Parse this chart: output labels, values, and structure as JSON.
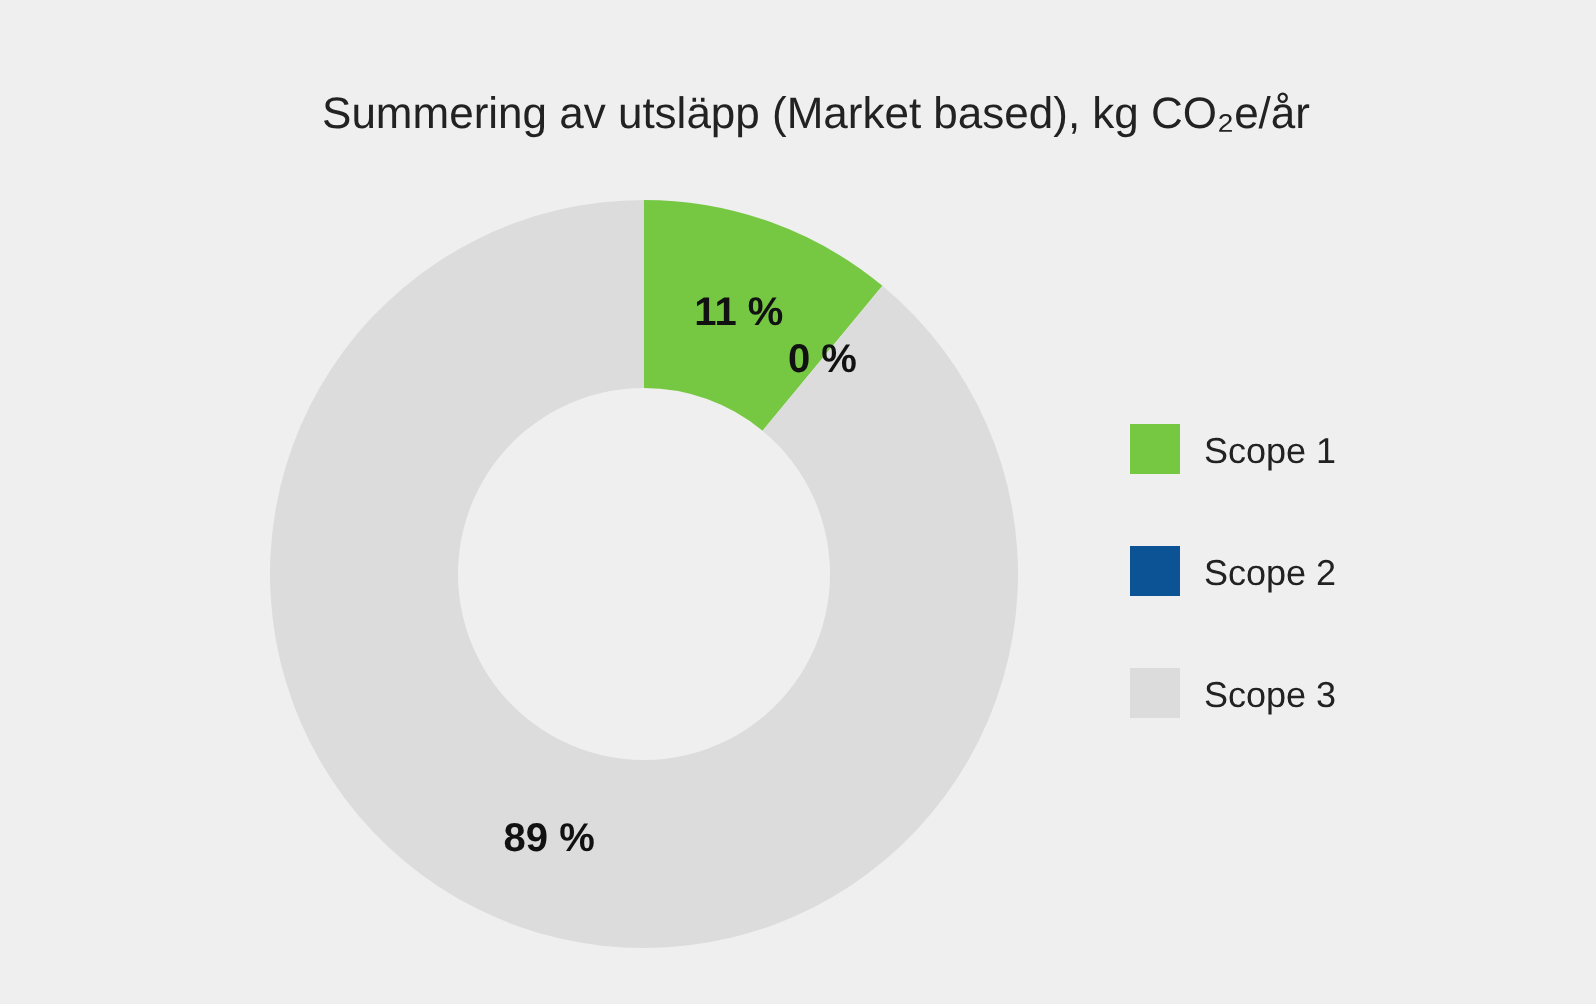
{
  "chart_data": {
    "type": "donut",
    "title": "Summering av utsläpp (Market based), kg CO₂e/år",
    "categories": [
      "Scope 1",
      "Scope 2",
      "Scope 3"
    ],
    "values": [
      11,
      0,
      89
    ],
    "colors": [
      "#76c843",
      "#0b5394",
      "#dcdcdc"
    ],
    "value_labels": [
      "11 %",
      "0 %",
      "89 %"
    ],
    "legend": "right"
  }
}
